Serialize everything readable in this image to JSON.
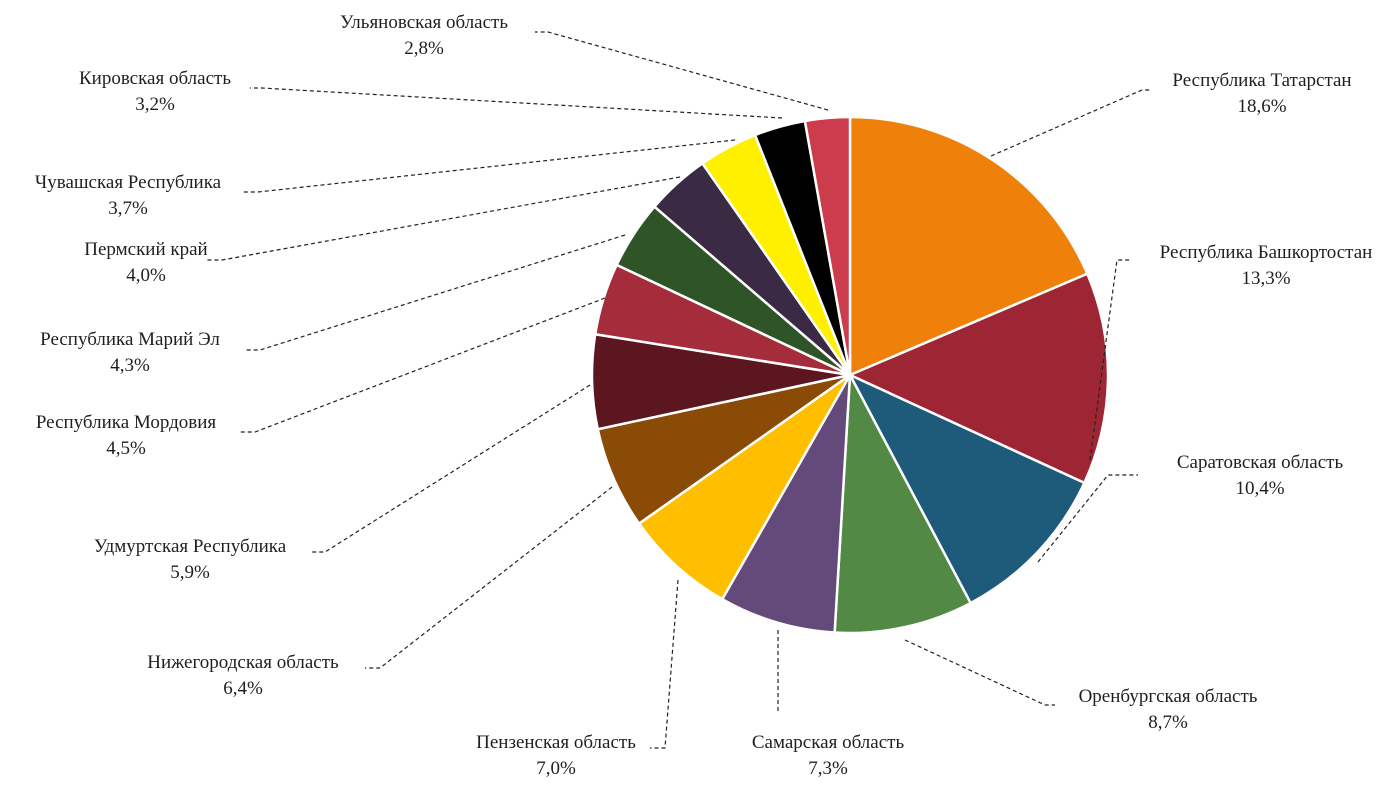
{
  "chart_data": {
    "type": "pie",
    "title": "",
    "start_angle_deg": 0,
    "direction": "clockwise",
    "legend": "none",
    "data_labels": "outside-with-leader-lines",
    "slices": [
      {
        "label": "Республика Татарстан",
        "value": 18.6,
        "value_label": "18,6%",
        "color": "#EF810A"
      },
      {
        "label": "Республика Башкортостан",
        "value": 13.3,
        "value_label": "13,3%",
        "color": "#9E2634"
      },
      {
        "label": "Саратовская область",
        "value": 10.4,
        "value_label": "10,4%",
        "color": "#1E5A7A"
      },
      {
        "label": "Оренбургская область",
        "value": 8.7,
        "value_label": "8,7%",
        "color": "#528A45"
      },
      {
        "label": "Самарская область",
        "value": 7.3,
        "value_label": "7,3%",
        "color": "#644A7A"
      },
      {
        "label": "Пензенская область",
        "value": 7.0,
        "value_label": "7,0%",
        "color": "#FFBF00"
      },
      {
        "label": "Нижегородская область",
        "value": 6.4,
        "value_label": "6,4%",
        "color": "#8A4B07"
      },
      {
        "label": "Удмуртская Республика",
        "value": 5.9,
        "value_label": "5,9%",
        "color": "#5C161F"
      },
      {
        "label": "Республика Мордовия",
        "value": 4.5,
        "value_label": "4,5%",
        "color": "#A52C3B"
      },
      {
        "label": "Республика Марий Эл",
        "value": 4.3,
        "value_label": "4,3%",
        "color": "#2F5427"
      },
      {
        "label": "Пермский край",
        "value": 4.0,
        "value_label": "4,0%",
        "color": "#3A2A44"
      },
      {
        "label": "Чувашская Республика",
        "value": 3.7,
        "value_label": "3,7%",
        "color": "#FFF000"
      },
      {
        "label": "Кировская область",
        "value": 3.2,
        "value_label": "3,2%",
        "color": "#000000"
      },
      {
        "label": "Ульяновская область",
        "value": 2.8,
        "value_label": "2,8%",
        "color": "#CC3C4C"
      }
    ]
  }
}
